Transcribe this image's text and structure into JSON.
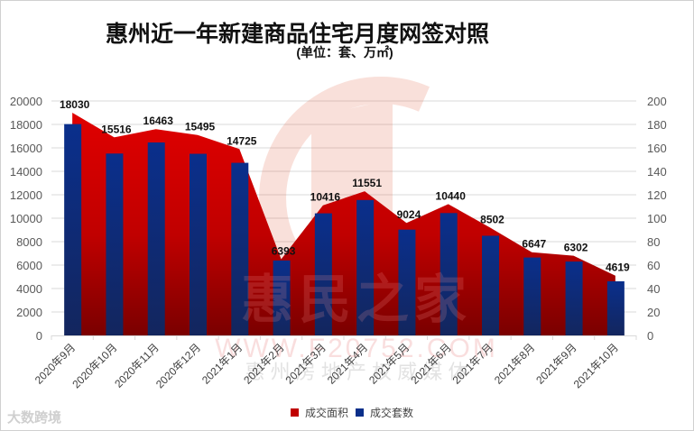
{
  "title": "惠州近一年新建商品住宅月度网签对照",
  "subtitle": "(单位：套、万㎡)",
  "legend": {
    "area_label": "成交面积",
    "bar_label": "成交套数"
  },
  "colors": {
    "area": "#d40000",
    "area_dark": "#8a0000",
    "bar": "#0a2f8a",
    "bar_dark": "#142a6a",
    "grid": "#d9d9d9"
  },
  "watermark": {
    "brand": "惠民之家",
    "url": "WWW.F20752.COM",
    "slogan": "惠 州 房 地 产 权 威 媒 体"
  },
  "brand_logo": "大数跨境",
  "chart_data": {
    "type": "bar+area",
    "title": "惠州近一年新建商品住宅月度网签对照",
    "subtitle": "(单位：套、万㎡)",
    "categories": [
      "2020年9月",
      "2020年10月",
      "2020年11月",
      "2020年12月",
      "2021年1月",
      "2021年2月",
      "2021年3月",
      "2021年4月",
      "2021年5月",
      "2021年6月",
      "2021年7月",
      "2021年8月",
      "2021年9月",
      "2021年10月"
    ],
    "series": [
      {
        "name": "成交套数",
        "type": "bar",
        "axis": "left",
        "values": [
          18030,
          15516,
          16463,
          15495,
          14725,
          6393,
          10416,
          11551,
          9024,
          10440,
          8502,
          6647,
          6302,
          4619
        ]
      },
      {
        "name": "成交面积",
        "type": "area",
        "axis": "right",
        "values": [
          190,
          169,
          176,
          171,
          159,
          65,
          111,
          123,
          96,
          112,
          92,
          71,
          68,
          51
        ]
      }
    ],
    "left_axis": {
      "min": 0,
      "max": 20000,
      "ticks": [
        0,
        2000,
        4000,
        6000,
        8000,
        10000,
        12000,
        14000,
        16000,
        18000,
        20000
      ]
    },
    "right_axis": {
      "min": 0,
      "max": 200,
      "ticks": [
        0,
        20,
        40,
        60,
        80,
        100,
        120,
        140,
        160,
        180,
        200
      ]
    },
    "grid": true,
    "legend_position": "bottom"
  }
}
